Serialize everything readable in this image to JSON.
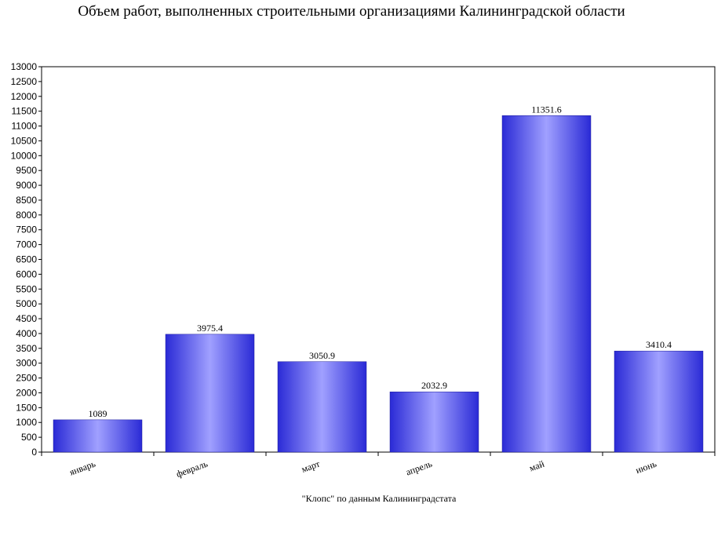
{
  "chart_data": {
    "type": "bar",
    "title": "Объем работ, выполненных строительными организациями Калининградской области",
    "source_note": "\"Клопс\" по данным Калининградстата",
    "categories": [
      "январь",
      "февраль",
      "март",
      "апрель",
      "май",
      "июнь"
    ],
    "values": [
      1089,
      3975.4,
      3050.9,
      2032.9,
      11351.6,
      3410.4
    ],
    "data_labels": [
      "1089",
      "3975.4",
      "3050.9",
      "2032.9",
      "11351.6",
      "3410.4"
    ],
    "ylim": [
      0,
      13000
    ],
    "ytick_step": 500,
    "bar_color": "#2a2ad6",
    "bar_highlight": "#a0a0ff",
    "grid": false,
    "legend": "none"
  }
}
